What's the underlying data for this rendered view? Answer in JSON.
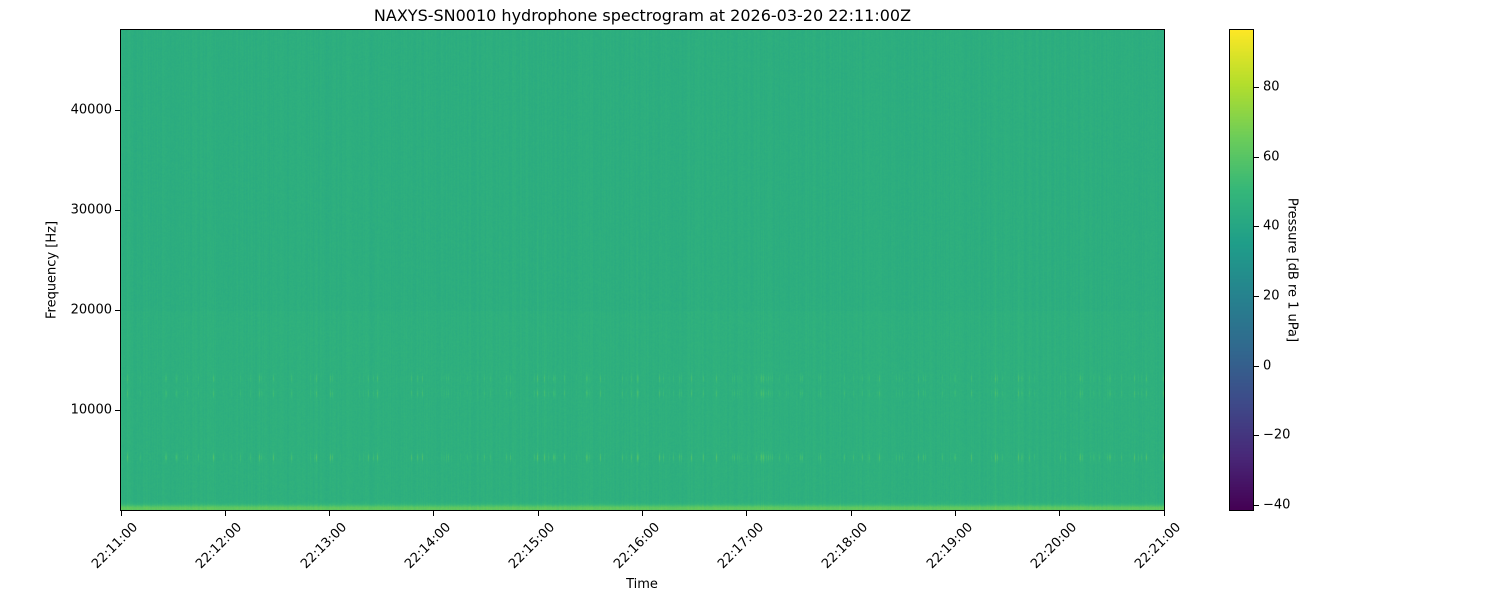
{
  "chart_data": {
    "type": "heatmap",
    "title": "NAXYS-SN0010 hydrophone spectrogram at 2026-03-20 22:11:00Z",
    "xlabel": "Time",
    "ylabel": "Frequency [Hz]",
    "colorbar_label": "Pressure [dB re 1 uPa]",
    "colormap": "viridis",
    "xlim": [
      "22:11:00",
      "22:21:00"
    ],
    "ylim": [
      0,
      48000
    ],
    "clim": [
      -41.4,
      96.4
    ],
    "x_ticks": [
      "22:11:00",
      "22:12:00",
      "22:13:00",
      "22:14:00",
      "22:15:00",
      "22:16:00",
      "22:17:00",
      "22:18:00",
      "22:19:00",
      "22:20:00",
      "22:21:00"
    ],
    "y_ticks": [
      10000,
      20000,
      30000,
      40000
    ],
    "y_tick_labels": [
      "10000",
      "20000",
      "30000",
      "40000"
    ],
    "c_ticks": [
      -40,
      -20,
      0,
      20,
      40,
      60,
      80
    ],
    "c_tick_labels": [
      "−40",
      "−20",
      "0",
      "20",
      "40",
      "60",
      "80"
    ],
    "background_level_db": 45,
    "tonal_bands": [
      {
        "freq_hz": 5300,
        "level_db": 58
      },
      {
        "freq_hz": 11700,
        "level_db": 54
      },
      {
        "freq_hz": 13200,
        "level_db": 54
      },
      {
        "freq_hz": 200,
        "level_db": 62
      }
    ],
    "grid": false
  }
}
